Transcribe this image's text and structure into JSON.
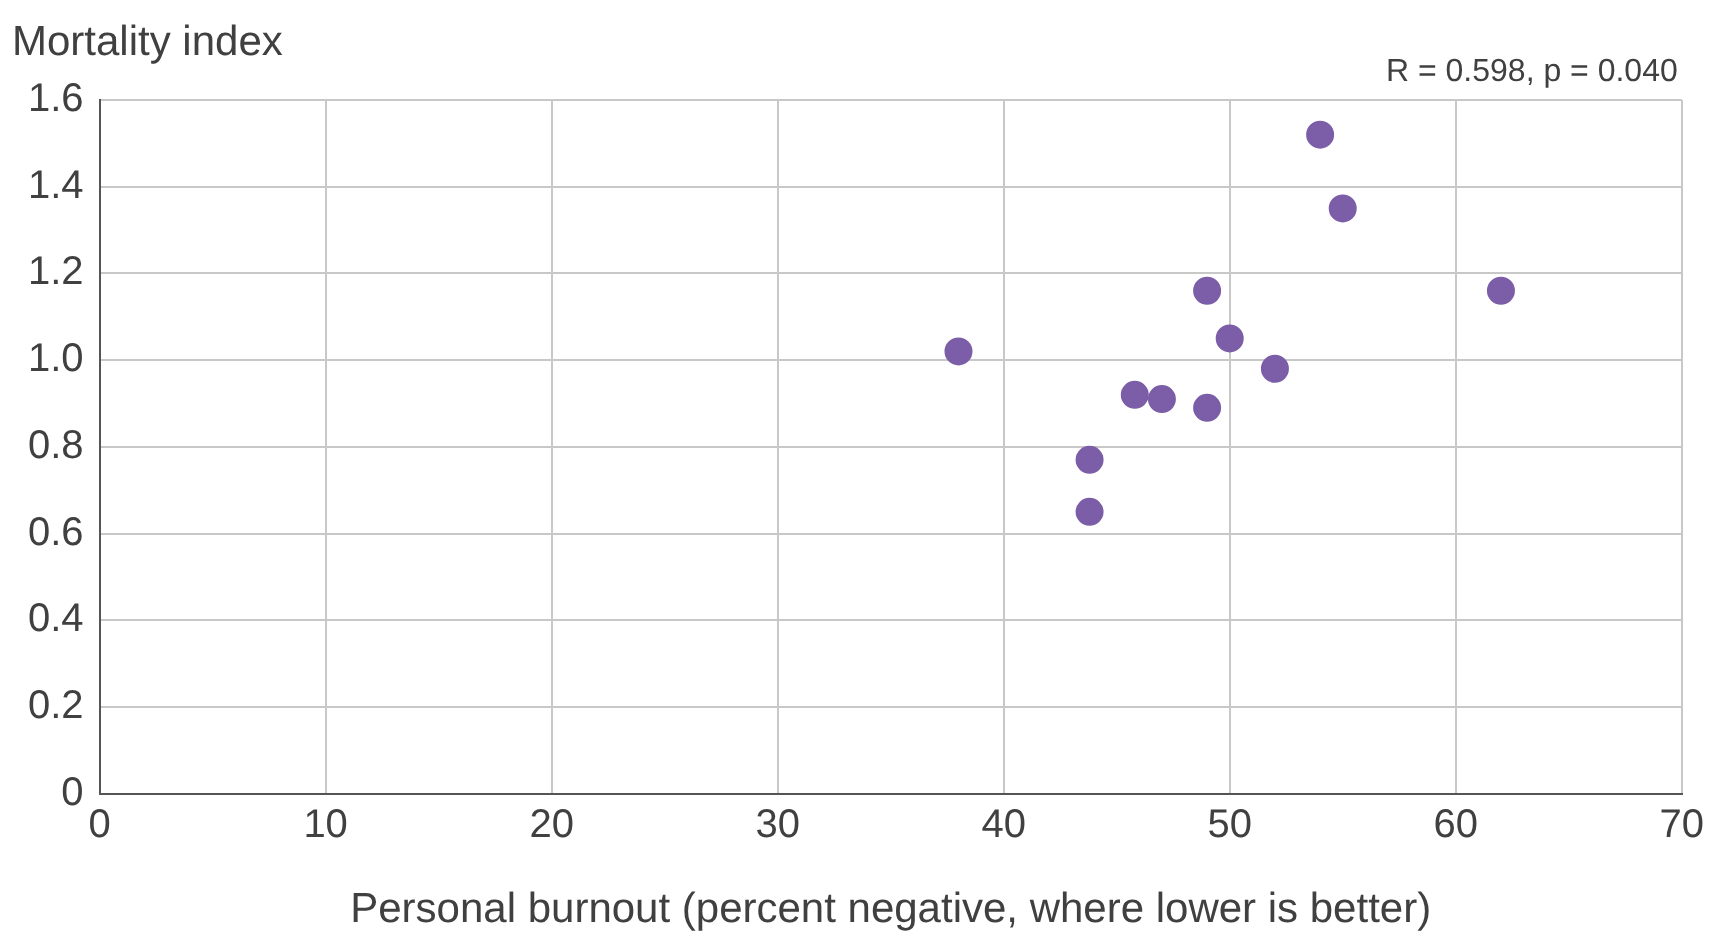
{
  "chart_data": {
    "type": "scatter",
    "ylabel": "Mortality index",
    "xlabel": "Personal burnout (percent negative, where lower is better)",
    "annotations": [
      "R = 0.598, p = 0.040"
    ],
    "x": [
      38,
      43.8,
      43.8,
      45.8,
      47,
      49,
      49,
      50,
      52,
      54,
      55,
      62
    ],
    "series": [
      {
        "color": "#7b5ea7",
        "values": [
          1.02,
          0.65,
          0.77,
          0.92,
          0.91,
          0.89,
          1.16,
          1.05,
          0.98,
          1.52,
          1.35,
          1.16
        ]
      }
    ],
    "xlim": [
      0,
      70
    ],
    "xticks": [
      0,
      10,
      20,
      30,
      40,
      50,
      60,
      70
    ],
    "ylim": [
      0,
      1.6
    ],
    "yticks": [
      0,
      0.2,
      0.4,
      0.6,
      0.8,
      {
        "value": 1,
        "label": "1.0"
      },
      1.2,
      1.4,
      1.6
    ],
    "grid": true,
    "legend": false,
    "marker": "circle"
  }
}
